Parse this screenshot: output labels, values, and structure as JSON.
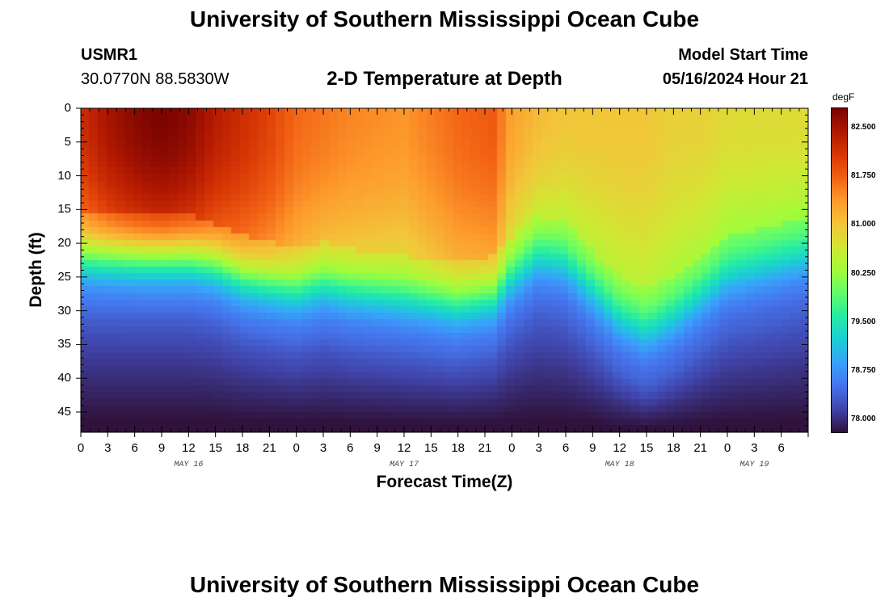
{
  "header": {
    "title": "University of Southern Mississippi Ocean Cube",
    "station_id": "USMR1",
    "coords": "30.0770N  88.5830W",
    "plot_title": "2-D Temperature at Depth",
    "model_label": "Model Start Time",
    "model_time": "05/16/2024 Hour 21"
  },
  "footer": {
    "title": "University of Southern Mississippi Ocean Cube"
  },
  "colors": {
    "palette": [
      "#30123b",
      "#4145ab",
      "#4675ed",
      "#39a2fc",
      "#1bcfd4",
      "#24eca6",
      "#61fc6c",
      "#a4fc3b",
      "#d1e834",
      "#f3c63a",
      "#fe9b2d",
      "#f36315",
      "#d93806",
      "#b11901",
      "#7a0402"
    ]
  },
  "chart_data": {
    "type": "heatmap",
    "title": "2-D Temperature at Depth",
    "xlabel": "Forecast Time(Z)",
    "ylabel": "Depth (ft)",
    "x_hours": [
      0,
      81
    ],
    "x_tick_labels": [
      "0",
      "3",
      "6",
      "9",
      "12",
      "15",
      "18",
      "21",
      "0",
      "3",
      "6",
      "9",
      "12",
      "15",
      "18",
      "21",
      "0",
      "3",
      "6",
      "9",
      "12",
      "15",
      "18",
      "21",
      "0",
      "3",
      "6"
    ],
    "date_labels": [
      {
        "label": "MAY 16",
        "hour": 12
      },
      {
        "label": "MAY 17",
        "hour": 36
      },
      {
        "label": "MAY 18",
        "hour": 60
      },
      {
        "label": "MAY 19",
        "hour": 75
      }
    ],
    "ylim": [
      0,
      48
    ],
    "y_ticks": [
      0,
      5,
      10,
      15,
      20,
      25,
      30,
      35,
      40,
      45
    ],
    "y_tick_labels": [
      "0",
      "5",
      "10",
      "15",
      "20",
      "25",
      "30",
      "35",
      "40",
      "45"
    ],
    "units": "degF",
    "colorbar_range": [
      77.8,
      82.8
    ],
    "colorbar_ticks": [
      78.0,
      78.75,
      79.5,
      80.25,
      81.0,
      81.75,
      82.5
    ],
    "colorbar_tick_labels": [
      "78.000",
      "78.750",
      "79.500",
      "80.250",
      "81.000",
      "81.750",
      "82.500"
    ],
    "thermocline_depth_profile": {
      "hours": [
        0,
        6,
        12,
        15,
        18,
        21,
        24,
        27,
        30,
        36,
        42,
        46,
        48,
        51,
        54,
        57,
        60,
        63,
        66,
        69,
        72,
        75,
        78,
        81
      ],
      "depth_ft": [
        22,
        22,
        22,
        23,
        25,
        26,
        27,
        26,
        27,
        28,
        29,
        28,
        25,
        22,
        23,
        27,
        31,
        33,
        31,
        28,
        25,
        24,
        23,
        22
      ]
    },
    "surface_temp_profile": {
      "hours": [
        0,
        3,
        6,
        9,
        12,
        15,
        18,
        21,
        24,
        30,
        36,
        42,
        46,
        48,
        51,
        54,
        57,
        60,
        63,
        66,
        69,
        72,
        75,
        78,
        81
      ],
      "temp_degF": [
        82.2,
        82.5,
        82.7,
        82.8,
        82.7,
        82.4,
        82.2,
        82.0,
        81.7,
        81.5,
        81.4,
        81.7,
        81.8,
        81.3,
        81.1,
        81.0,
        81.0,
        81.0,
        81.0,
        80.9,
        80.9,
        80.8,
        80.8,
        80.8,
        80.8
      ]
    },
    "bottom_temp_degF": 77.8
  }
}
